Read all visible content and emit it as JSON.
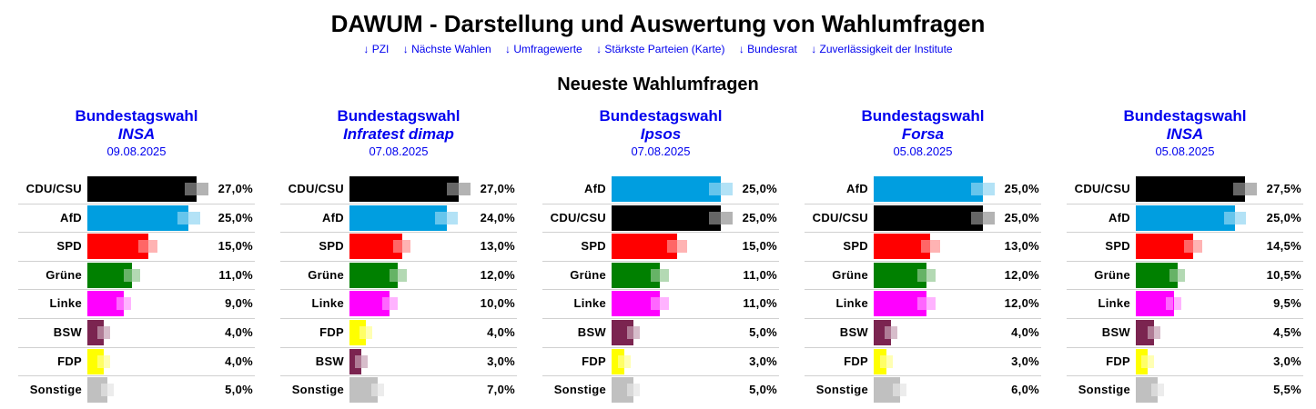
{
  "header": {
    "title": "DAWUM - Darstellung und Auswertung von Wahlumfragen",
    "nav_links": [
      {
        "label": "↓ PZI"
      },
      {
        "label": "↓ Nächste Wahlen"
      },
      {
        "label": "↓ Umfragewerte"
      },
      {
        "label": "↓ Stärkste Parteien (Karte)"
      },
      {
        "label": "↓ Bundesrat"
      },
      {
        "label": "↓ Zuverlässigkeit der Institute"
      }
    ]
  },
  "section_title": "Neueste Wahlumfragen",
  "party_colors": {
    "CDU/CSU": "#000000",
    "AfD": "#009ee0",
    "SPD": "#ff0000",
    "Grüne": "#008000",
    "Linke": "#ff00ff",
    "BSW": "#7b2450",
    "FDP": "#ffff00",
    "Sonstige": "#c0c0c0"
  },
  "chart_data": [
    {
      "type": "bar",
      "title": "Bundestagswahl",
      "institute": "INSA",
      "date": "09.08.2025",
      "categories": [
        "CDU/CSU",
        "AfD",
        "SPD",
        "Grüne",
        "Linke",
        "BSW",
        "FDP",
        "Sonstige"
      ],
      "values": [
        27.0,
        25.0,
        15.0,
        11.0,
        9.0,
        4.0,
        4.0,
        5.0
      ],
      "value_labels": [
        "27,0%",
        "25,0%",
        "15,0%",
        "11,0%",
        "9,0%",
        "4,0%",
        "4,0%",
        "5,0%"
      ],
      "unit": "%"
    },
    {
      "type": "bar",
      "title": "Bundestagswahl",
      "institute": "Infratest dimap",
      "date": "07.08.2025",
      "categories": [
        "CDU/CSU",
        "AfD",
        "SPD",
        "Grüne",
        "Linke",
        "FDP",
        "BSW",
        "Sonstige"
      ],
      "values": [
        27.0,
        24.0,
        13.0,
        12.0,
        10.0,
        4.0,
        3.0,
        7.0
      ],
      "value_labels": [
        "27,0%",
        "24,0%",
        "13,0%",
        "12,0%",
        "10,0%",
        "4,0%",
        "3,0%",
        "7,0%"
      ],
      "unit": "%"
    },
    {
      "type": "bar",
      "title": "Bundestagswahl",
      "institute": "Ipsos",
      "date": "07.08.2025",
      "categories": [
        "AfD",
        "CDU/CSU",
        "SPD",
        "Grüne",
        "Linke",
        "BSW",
        "FDP",
        "Sonstige"
      ],
      "values": [
        25.0,
        25.0,
        15.0,
        11.0,
        11.0,
        5.0,
        3.0,
        5.0
      ],
      "value_labels": [
        "25,0%",
        "25,0%",
        "15,0%",
        "11,0%",
        "11,0%",
        "5,0%",
        "3,0%",
        "5,0%"
      ],
      "unit": "%"
    },
    {
      "type": "bar",
      "title": "Bundestagswahl",
      "institute": "Forsa",
      "date": "05.08.2025",
      "categories": [
        "AfD",
        "CDU/CSU",
        "SPD",
        "Grüne",
        "Linke",
        "BSW",
        "FDP",
        "Sonstige"
      ],
      "values": [
        25.0,
        25.0,
        13.0,
        12.0,
        12.0,
        4.0,
        3.0,
        6.0
      ],
      "value_labels": [
        "25,0%",
        "25,0%",
        "13,0%",
        "12,0%",
        "12,0%",
        "4,0%",
        "3,0%",
        "6,0%"
      ],
      "unit": "%"
    },
    {
      "type": "bar",
      "title": "Bundestagswahl",
      "institute": "INSA",
      "date": "05.08.2025",
      "categories": [
        "CDU/CSU",
        "AfD",
        "SPD",
        "Grüne",
        "Linke",
        "BSW",
        "FDP",
        "Sonstige"
      ],
      "values": [
        27.5,
        25.0,
        14.5,
        10.5,
        9.5,
        4.5,
        3.0,
        5.5
      ],
      "value_labels": [
        "27,5%",
        "25,0%",
        "14,5%",
        "10,5%",
        "9,5%",
        "4,5%",
        "3,0%",
        "5,5%"
      ],
      "unit": "%"
    }
  ]
}
